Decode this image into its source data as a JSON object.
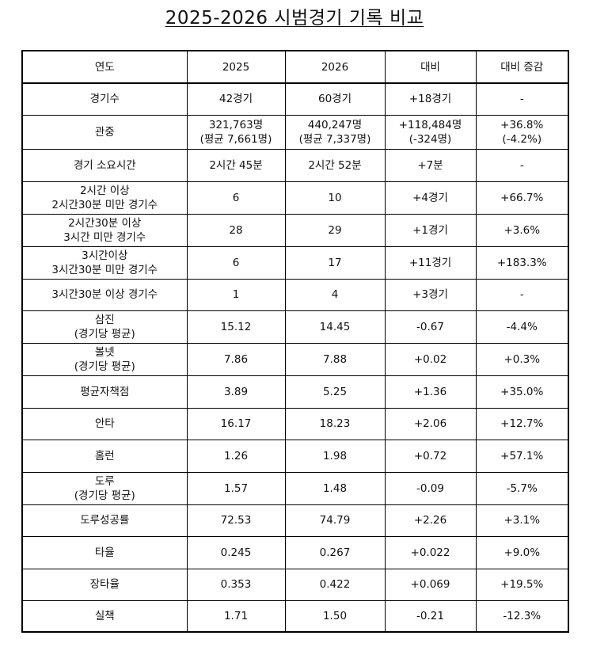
{
  "title": "2025-2026 시범경기 기록 비교",
  "table": {
    "headers": [
      "연도",
      "2025",
      "2026",
      "대비",
      "대비 증감"
    ],
    "rows": [
      {
        "label": [
          "경기수"
        ],
        "y2025": [
          "42경기"
        ],
        "y2026": [
          "60경기"
        ],
        "diff": [
          "+18경기"
        ],
        "pct": [
          "-"
        ]
      },
      {
        "label": [
          "관중"
        ],
        "y2025": [
          "321,763명",
          "(평균 7,661명)"
        ],
        "y2026": [
          "440,247명",
          "(평균 7,337명)"
        ],
        "diff": [
          "+118,484명",
          "(-324명)"
        ],
        "pct": [
          "+36.8%",
          "(-4.2%)"
        ]
      },
      {
        "label": [
          "경기 소요시간"
        ],
        "y2025": [
          "2시간 45분"
        ],
        "y2026": [
          "2시간 52분"
        ],
        "diff": [
          "+7분"
        ],
        "pct": [
          "-"
        ]
      },
      {
        "label": [
          "2시간 이상",
          "2시간30분 미만 경기수"
        ],
        "y2025": [
          "6"
        ],
        "y2026": [
          "10"
        ],
        "diff": [
          "+4경기"
        ],
        "pct": [
          "+66.7%"
        ]
      },
      {
        "label": [
          "2시간30분 이상",
          "3시간 미만 경기수"
        ],
        "y2025": [
          "28"
        ],
        "y2026": [
          "29"
        ],
        "diff": [
          "+1경기"
        ],
        "pct": [
          "+3.6%"
        ]
      },
      {
        "label": [
          "3시간이상",
          "3시간30분 미만 경기수"
        ],
        "y2025": [
          "6"
        ],
        "y2026": [
          "17"
        ],
        "diff": [
          "+11경기"
        ],
        "pct": [
          "+183.3%"
        ]
      },
      {
        "label": [
          "3시간30분 이상 경기수"
        ],
        "y2025": [
          "1"
        ],
        "y2026": [
          "4"
        ],
        "diff": [
          "+3경기"
        ],
        "pct": [
          "-"
        ]
      },
      {
        "label": [
          "삼진",
          "(경기당 평균)"
        ],
        "y2025": [
          "15.12"
        ],
        "y2026": [
          "14.45"
        ],
        "diff": [
          "-0.67"
        ],
        "pct": [
          "-4.4%"
        ]
      },
      {
        "label": [
          "볼넷",
          "(경기당 평균)"
        ],
        "y2025": [
          "7.86"
        ],
        "y2026": [
          "7.88"
        ],
        "diff": [
          "+0.02"
        ],
        "pct": [
          "+0.3%"
        ]
      },
      {
        "label": [
          "평균자책점"
        ],
        "y2025": [
          "3.89"
        ],
        "y2026": [
          "5.25"
        ],
        "diff": [
          "+1.36"
        ],
        "pct": [
          "+35.0%"
        ]
      },
      {
        "label": [
          "안타"
        ],
        "y2025": [
          "16.17"
        ],
        "y2026": [
          "18.23"
        ],
        "diff": [
          "+2.06"
        ],
        "pct": [
          "+12.7%"
        ]
      },
      {
        "label": [
          "홈런"
        ],
        "y2025": [
          "1.26"
        ],
        "y2026": [
          "1.98"
        ],
        "diff": [
          "+0.72"
        ],
        "pct": [
          "+57.1%"
        ]
      },
      {
        "label": [
          "도루",
          "(경기당 평균)"
        ],
        "y2025": [
          "1.57"
        ],
        "y2026": [
          "1.48"
        ],
        "diff": [
          "-0.09"
        ],
        "pct": [
          "-5.7%"
        ]
      },
      {
        "label": [
          "도루성공률"
        ],
        "y2025": [
          "72.53"
        ],
        "y2026": [
          "74.79"
        ],
        "diff": [
          "+2.26"
        ],
        "pct": [
          "+3.1%"
        ]
      },
      {
        "label": [
          "타율"
        ],
        "y2025": [
          "0.245"
        ],
        "y2026": [
          "0.267"
        ],
        "diff": [
          "+0.022"
        ],
        "pct": [
          "+9.0%"
        ]
      },
      {
        "label": [
          "장타율"
        ],
        "y2025": [
          "0.353"
        ],
        "y2026": [
          "0.422"
        ],
        "diff": [
          "+0.069"
        ],
        "pct": [
          "+19.5%"
        ]
      },
      {
        "label": [
          "실책"
        ],
        "y2025": [
          "1.71"
        ],
        "y2026": [
          "1.50"
        ],
        "diff": [
          "-0.21"
        ],
        "pct": [
          "-12.3%"
        ]
      }
    ]
  }
}
